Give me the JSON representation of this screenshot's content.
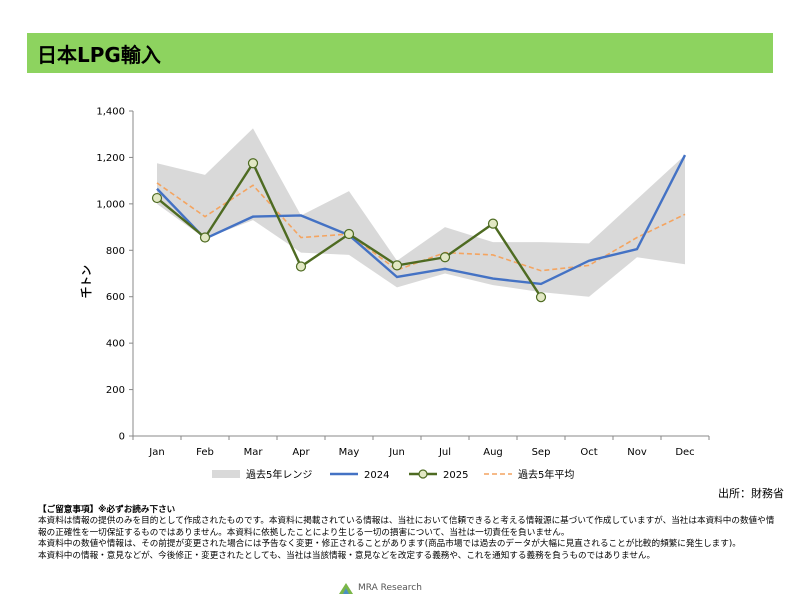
{
  "title": "日本LPG輸入",
  "source": "出所：財務省",
  "notes": {
    "heading": "【ご留意事項】※必ずお読み下さい",
    "lines": [
      "本資料は情報の提供のみを目的として作成されたものです。本資料に掲載されている情報は、当社において信頼できると考える情報源に基づいて作成していますが、当社は本資料中の数値や情報の正確性を一切保証するものではありません。本資料に依拠したことにより生じる一切の損害について、当社は一切責任を負いません。",
      "本資料中の数値や情報は、その前提が変更された場合には予告なく変更・修正されることがあります(商品市場では過去のデータが大幅に見直されることが比較的頻繁に発生します)。",
      "本資料中の情報・意見などが、今後修正・変更されたとしても、当社は当該情報・意見などを改定する義務や、これを通知する義務を負うものではありません。"
    ]
  },
  "footer": {
    "brand": "MRA Research"
  },
  "chart_data": {
    "type": "line",
    "ylabel": "千トン",
    "ylim": [
      0,
      1400
    ],
    "yticks": [
      0,
      200,
      400,
      600,
      800,
      1000,
      1200,
      1400
    ],
    "ytick_labels": [
      "0",
      "200",
      "400",
      "600",
      "800",
      "1,000",
      "1,200",
      "1,400"
    ],
    "categories": [
      "Jan",
      "Feb",
      "Mar",
      "Apr",
      "May",
      "Jun",
      "Jul",
      "Aug",
      "Sep",
      "Oct",
      "Nov",
      "Dec"
    ],
    "range_band": {
      "name": "過去5年レンジ",
      "color": "#d9d9d9",
      "low": [
        1000,
        850,
        930,
        790,
        780,
        640,
        700,
        650,
        620,
        600,
        770,
        740
      ],
      "high": [
        1175,
        1125,
        1325,
        950,
        1055,
        755,
        900,
        835,
        835,
        830,
        1020,
        1210
      ]
    },
    "series": [
      {
        "name": "2024",
        "color": "#4472c4",
        "style": "solid",
        "values": [
          1065,
          850,
          945,
          950,
          865,
          685,
          720,
          678,
          655,
          755,
          805,
          1210
        ]
      },
      {
        "name": "2025",
        "color": "#4e6b22",
        "style": "marker",
        "values": [
          1025,
          855,
          1175,
          730,
          870,
          735,
          770,
          915,
          598,
          null,
          null,
          null
        ]
      },
      {
        "name": "過去5年平均",
        "color": "#f4a460",
        "style": "dashed",
        "values": [
          1090,
          945,
          1080,
          855,
          870,
          715,
          790,
          780,
          712,
          735,
          855,
          955
        ]
      }
    ],
    "grid": false,
    "legend_position": "bottom"
  }
}
